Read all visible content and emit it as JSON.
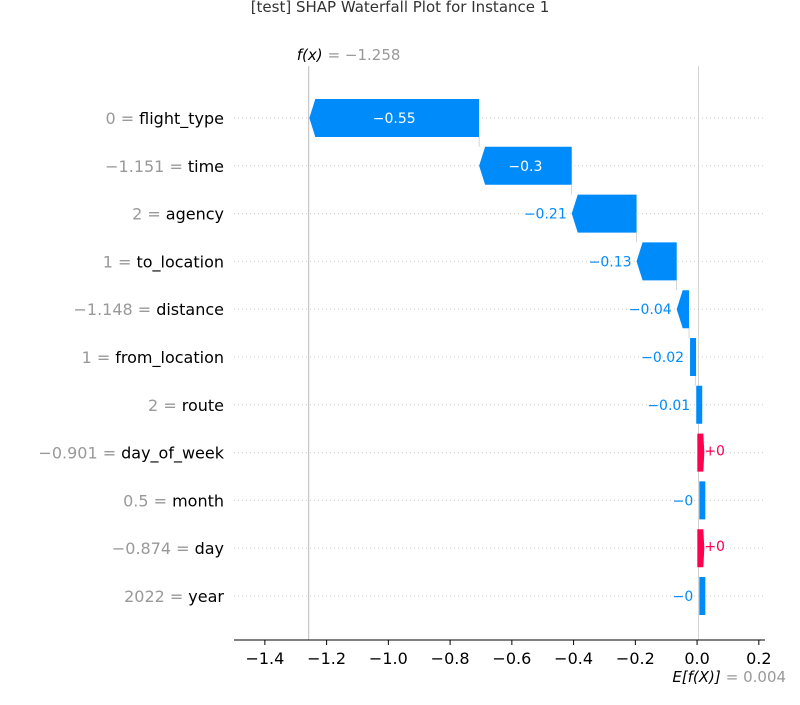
{
  "chart_data": {
    "type": "waterfall",
    "title": "[test] SHAP Waterfall Plot for Instance 1",
    "fx_label": "f(x)",
    "fx_value": -1.258,
    "fx_value_text": "= −1.258",
    "efx_label": "E[f(X)]",
    "base_value": 0.004,
    "efx_value_text": "= 0.004",
    "xlim": [
      -1.5,
      0.22
    ],
    "x_ticks": [
      {
        "value": -1.4,
        "label": "−1.4"
      },
      {
        "value": -1.2,
        "label": "−1.2"
      },
      {
        "value": -1.0,
        "label": "−1.0"
      },
      {
        "value": -0.8,
        "label": "−0.8"
      },
      {
        "value": -0.6,
        "label": "−0.6"
      },
      {
        "value": -0.4,
        "label": "−0.4"
      },
      {
        "value": -0.2,
        "label": "−0.2"
      },
      {
        "value": 0.0,
        "label": "0.0"
      },
      {
        "value": 0.2,
        "label": "0.2"
      }
    ],
    "features": [
      {
        "value_text": "0 =",
        "name": "flight_type",
        "shap": -0.55,
        "label": "−0.55"
      },
      {
        "value_text": "−1.151 =",
        "name": "time",
        "shap": -0.3,
        "label": "−0.3"
      },
      {
        "value_text": "2 =",
        "name": "agency",
        "shap": -0.21,
        "label": "−0.21"
      },
      {
        "value_text": "1 =",
        "name": "to_location",
        "shap": -0.13,
        "label": "−0.13"
      },
      {
        "value_text": "−1.148 =",
        "name": "distance",
        "shap": -0.04,
        "label": "−0.04"
      },
      {
        "value_text": "1 =",
        "name": "from_location",
        "shap": -0.02,
        "label": "−0.02"
      },
      {
        "value_text": "2 =",
        "name": "route",
        "shap": -0.01,
        "label": "−0.01"
      },
      {
        "value_text": "−0.901 =",
        "name": "day_of_week",
        "shap": 0.0,
        "label": "+0",
        "sign": "positive"
      },
      {
        "value_text": "0.5 =",
        "name": "month",
        "shap": 0.0,
        "label": "−0",
        "sign": "negative"
      },
      {
        "value_text": "−0.874 =",
        "name": "day",
        "shap": 0.0,
        "label": "+0",
        "sign": "positive"
      },
      {
        "value_text": "2022 =",
        "name": "year",
        "shap": 0.0,
        "label": "−0",
        "sign": "negative"
      }
    ],
    "colors": {
      "negative": "#008bfb",
      "positive": "#ff0051",
      "grid": "#cccccc",
      "muted": "#999999"
    }
  }
}
